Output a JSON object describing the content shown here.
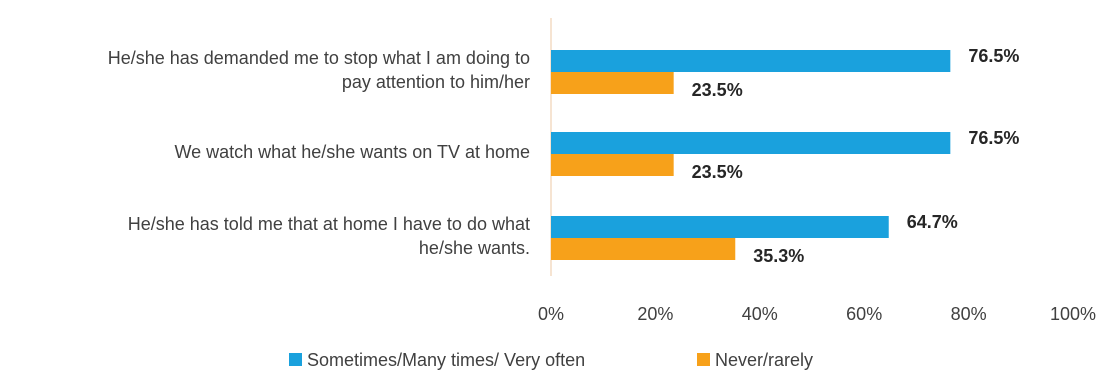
{
  "chart_data": {
    "type": "bar",
    "orientation": "horizontal",
    "categories": [
      [
        "He/she has demanded me to stop what I am doing to",
        "pay attention to him/her"
      ],
      [
        "We watch what he/she wants on TV at home"
      ],
      [
        "He/she has told me that at home I have to do what",
        "he/she wants."
      ]
    ],
    "series": [
      {
        "name": "Sometimes/Many times/ Very often",
        "color": "#1aa1dd",
        "values": [
          76.5,
          76.5,
          64.7
        ],
        "labels": [
          "76.5%",
          "76.5%",
          "64.7%"
        ]
      },
      {
        "name": "Never/rarely",
        "color": "#f7a11a",
        "values": [
          23.5,
          23.5,
          35.3
        ],
        "labels": [
          "23.5%",
          "23.5%",
          "35.3%"
        ]
      }
    ],
    "xlim": [
      0,
      100
    ],
    "x_ticks": [
      "0%",
      "20%",
      "40%",
      "60%",
      "80%",
      "100%"
    ],
    "x_tick_values": [
      0,
      20,
      40,
      60,
      80,
      100
    ],
    "grid": false,
    "legend_position": "bottom",
    "axis_line_color": "#f4dcc4"
  }
}
